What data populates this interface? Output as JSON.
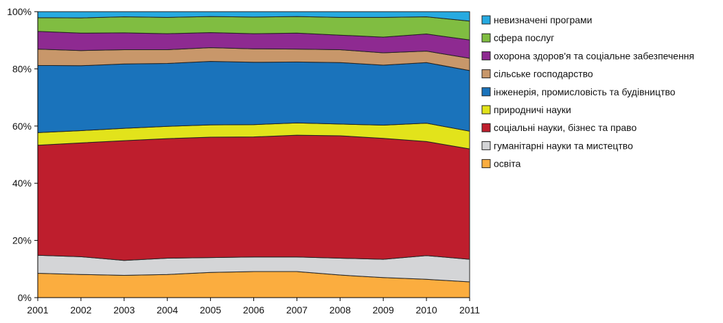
{
  "chart_data": {
    "type": "area",
    "stacked": true,
    "normalized_percent": true,
    "title": "",
    "xlabel": "",
    "ylabel": "",
    "x": [
      2001,
      2002,
      2003,
      2004,
      2005,
      2006,
      2007,
      2008,
      2009,
      2010,
      2011
    ],
    "ylim": [
      0,
      100
    ],
    "yticks": [
      0,
      20,
      40,
      60,
      80,
      100
    ],
    "ytick_labels": [
      "0%",
      "20%",
      "40%",
      "60%",
      "80%",
      "100%"
    ],
    "grid": false,
    "legend_position": "right",
    "series": [
      {
        "name": "освіта",
        "color": "#fbad3f",
        "values": [
          8.5,
          8.1,
          7.8,
          8.1,
          8.8,
          9.1,
          9.1,
          7.9,
          7.0,
          6.4,
          5.5
        ]
      },
      {
        "name": "гуманітарні науки та мистецтво",
        "color": "#d4d5d7",
        "values": [
          6.3,
          6.2,
          5.2,
          5.7,
          5.2,
          5.1,
          5.1,
          5.9,
          6.4,
          8.3,
          7.9
        ]
      },
      {
        "name": "соціальні науки, бізнес та право",
        "color": "#be1e2d",
        "values": [
          38.5,
          39.8,
          41.9,
          41.8,
          42.1,
          42.0,
          42.6,
          42.8,
          42.3,
          39.9,
          38.6
        ]
      },
      {
        "name": "природничі науки",
        "color": "#e2e31b",
        "values": [
          4.4,
          4.3,
          4.3,
          4.3,
          4.3,
          4.3,
          4.3,
          4.1,
          4.6,
          6.4,
          6.2
        ]
      },
      {
        "name": "інженерія, промисловість та будівництво",
        "color": "#1a73bb",
        "values": [
          23.5,
          22.7,
          22.5,
          22.0,
          22.2,
          21.8,
          21.3,
          21.5,
          21.0,
          21.2,
          21.2
        ]
      },
      {
        "name": "сільське господарство",
        "color": "#c8976a",
        "values": [
          5.7,
          5.3,
          5.0,
          4.8,
          4.8,
          4.7,
          4.5,
          4.5,
          4.3,
          4.0,
          4.3
        ]
      },
      {
        "name": "охорона здоров'я та соціальне забезпечення",
        "color": "#8e2a91",
        "values": [
          6.2,
          6.1,
          5.9,
          5.6,
          5.3,
          5.3,
          5.6,
          5.1,
          5.5,
          6.0,
          6.4
        ]
      },
      {
        "name": "сфера послуг",
        "color": "#80bd41",
        "values": [
          4.8,
          5.3,
          5.6,
          5.7,
          5.6,
          5.8,
          5.8,
          6.2,
          6.9,
          6.0,
          6.6
        ]
      },
      {
        "name": "невизначені програми",
        "color": "#27aae1",
        "values": [
          2.1,
          2.2,
          1.8,
          2.0,
          1.7,
          1.9,
          1.7,
          2.0,
          2.0,
          1.8,
          3.3
        ]
      }
    ],
    "legend_order": [
      "невизначені програми",
      "сфера послуг",
      "охорона здоров'я та соціальне забезпечення",
      "сільське господарство",
      "інженерія, промисловість та будівництво",
      "природничі науки",
      "соціальні науки, бізнес та право",
      "гуманітарні науки та мистецтво",
      "освіта"
    ]
  }
}
